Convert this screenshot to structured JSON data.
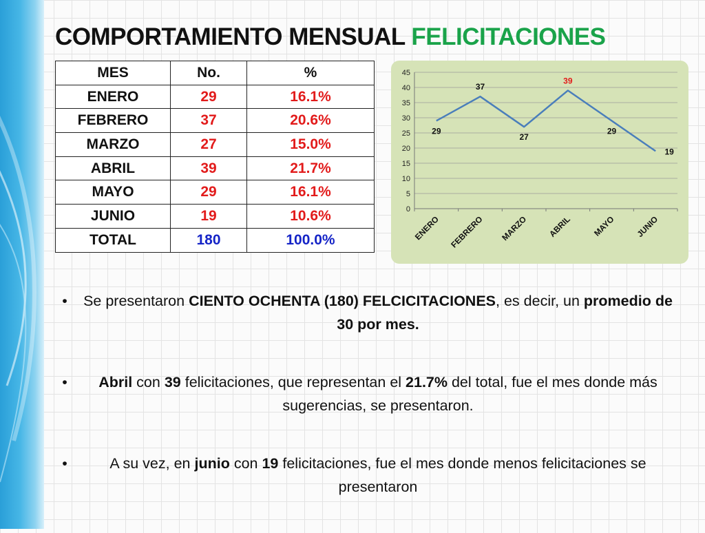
{
  "title": {
    "main": "COMPORTAMIENTO MENSUAL",
    "accent": "FELICITACIONES"
  },
  "table": {
    "headers": [
      "MES",
      "No.",
      "%"
    ],
    "rows": [
      {
        "mes": "ENERO",
        "no": "29",
        "pct": "16.1%"
      },
      {
        "mes": "FEBRERO",
        "no": "37",
        "pct": "20.6%"
      },
      {
        "mes": "MARZO",
        "no": "27",
        "pct": "15.0%"
      },
      {
        "mes": "ABRIL",
        "no": "39",
        "pct": "21.7%"
      },
      {
        "mes": "MAYO",
        "no": "29",
        "pct": "16.1%"
      },
      {
        "mes": "JUNIO",
        "no": "19",
        "pct": "10.6%"
      }
    ],
    "total": {
      "mes": "TOTAL",
      "no": "180",
      "pct": "100.0%"
    }
  },
  "chart_data": {
    "type": "line",
    "categories": [
      "ENERO",
      "FEBRERO",
      "MARZO",
      "ABRIL",
      "MAYO",
      "JUNIO"
    ],
    "series": [
      {
        "values": [
          29,
          37,
          27,
          39,
          29,
          19
        ]
      }
    ],
    "title": "",
    "xlabel": "",
    "ylabel": "",
    "ylim": [
      0,
      45
    ],
    "yticks": [
      0,
      5,
      10,
      15,
      20,
      25,
      30,
      35,
      40,
      45
    ],
    "grid": true,
    "line_color": "#4a7ebb",
    "highlight_label_color": "#e21b1b",
    "highlight_index": 3
  },
  "bullets": [
    {
      "dot": "•",
      "parts": [
        {
          "text": "Se presentaron ",
          "bold": false
        },
        {
          "text": "CIENTO OCHENTA (180) FELCICITACIONES",
          "bold": true
        },
        {
          "text": ", es decir, un ",
          "bold": false
        },
        {
          "text": "promedio de 30 por mes.",
          "bold": true
        }
      ]
    },
    {
      "dot": "•",
      "parts": [
        {
          "text": "Abril",
          "bold": true
        },
        {
          "text": " con ",
          "bold": false
        },
        {
          "text": "39",
          "bold": true
        },
        {
          "text": " felicitaciones, que representan el ",
          "bold": false
        },
        {
          "text": "21.7%",
          "bold": true
        },
        {
          "text": " del total, fue el mes donde más sugerencias, se presentaron.",
          "bold": false
        }
      ]
    },
    {
      "dot": "•",
      "parts": [
        {
          "text": "A su vez, en ",
          "bold": false
        },
        {
          "text": "junio",
          "bold": true
        },
        {
          "text": " con ",
          "bold": false
        },
        {
          "text": "19",
          "bold": true
        },
        {
          "text": " felicitaciones, fue el mes donde menos felicitaciones se presentaron",
          "bold": false
        }
      ]
    }
  ]
}
